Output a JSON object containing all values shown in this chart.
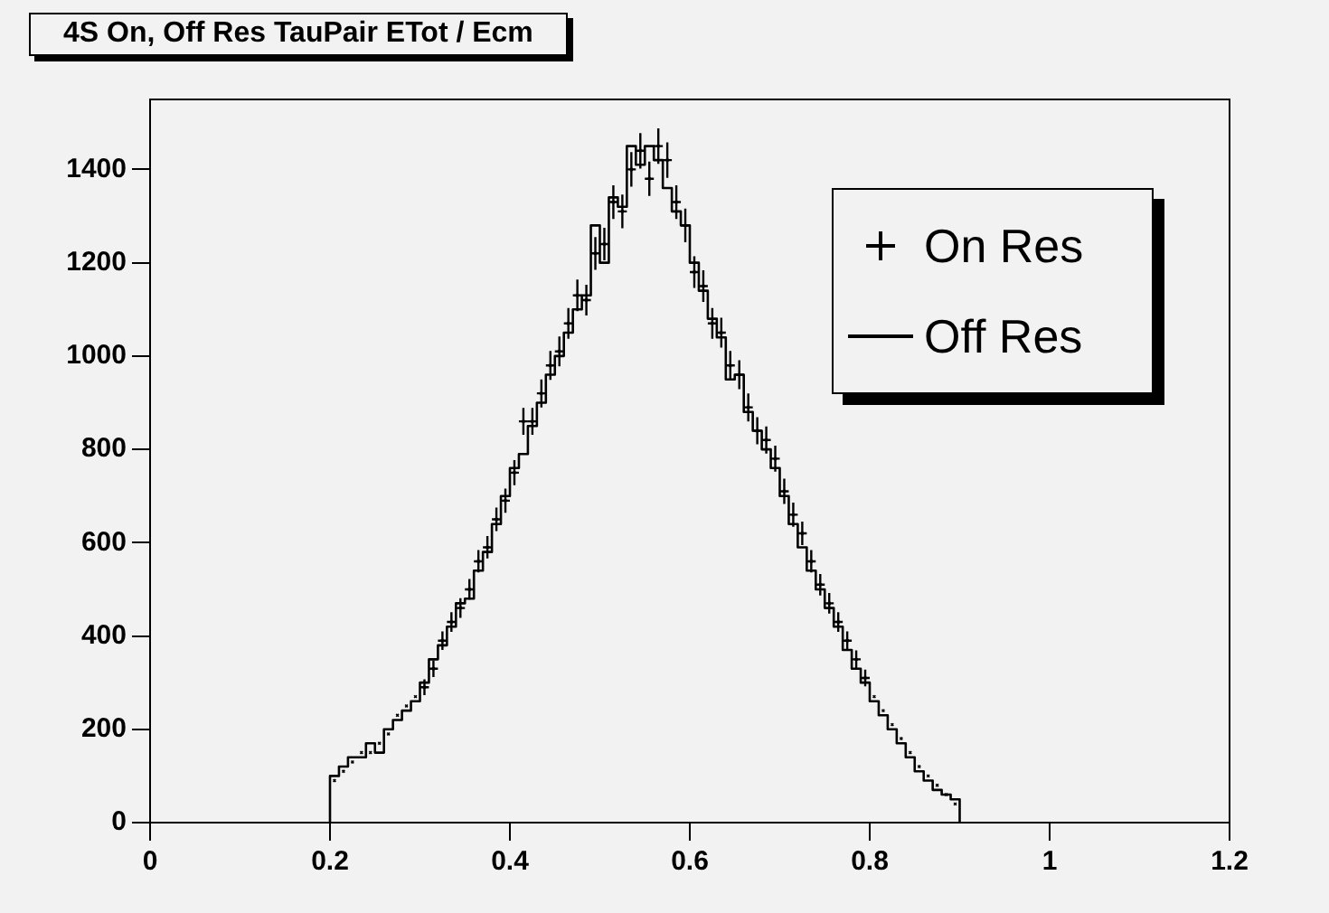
{
  "chart_data": {
    "type": "histogram",
    "title": "4S On, Off Res TauPair ETot / Ecm",
    "bins": [
      0.2,
      0.21,
      0.22,
      0.23,
      0.24,
      0.25,
      0.26,
      0.27,
      0.28,
      0.29,
      0.3,
      0.31,
      0.32,
      0.33,
      0.34,
      0.35,
      0.36,
      0.37,
      0.38,
      0.39,
      0.4,
      0.41,
      0.42,
      0.43,
      0.44,
      0.45,
      0.46,
      0.47,
      0.48,
      0.49,
      0.5,
      0.51,
      0.52,
      0.53,
      0.54,
      0.55,
      0.56,
      0.57,
      0.58,
      0.59,
      0.6,
      0.61,
      0.62,
      0.63,
      0.64,
      0.65,
      0.66,
      0.67,
      0.68,
      0.69,
      0.7,
      0.71,
      0.72,
      0.73,
      0.74,
      0.75,
      0.76,
      0.77,
      0.78,
      0.79,
      0.8,
      0.81,
      0.82,
      0.83,
      0.84,
      0.85,
      0.86,
      0.87,
      0.88,
      0.89,
      0.9
    ],
    "series": [
      {
        "name": "On Res",
        "type": "scatter",
        "color": "#000000",
        "x": [
          0.205,
          0.215,
          0.225,
          0.235,
          0.245,
          0.255,
          0.265,
          0.275,
          0.285,
          0.295,
          0.305,
          0.315,
          0.325,
          0.335,
          0.345,
          0.355,
          0.365,
          0.375,
          0.385,
          0.395,
          0.405,
          0.415,
          0.425,
          0.435,
          0.445,
          0.455,
          0.465,
          0.475,
          0.485,
          0.495,
          0.505,
          0.515,
          0.525,
          0.535,
          0.545,
          0.555,
          0.565,
          0.575,
          0.585,
          0.595,
          0.605,
          0.615,
          0.625,
          0.635,
          0.645,
          0.655,
          0.665,
          0.675,
          0.685,
          0.695,
          0.705,
          0.715,
          0.725,
          0.735,
          0.745,
          0.755,
          0.765,
          0.775,
          0.785,
          0.795,
          0.805,
          0.815,
          0.825,
          0.835,
          0.845,
          0.855,
          0.865,
          0.875,
          0.885,
          0.895
        ],
        "values": [
          90,
          110,
          130,
          150,
          150,
          170,
          190,
          230,
          250,
          270,
          290,
          330,
          390,
          430,
          460,
          500,
          560,
          590,
          650,
          690,
          750,
          860,
          860,
          920,
          980,
          1010,
          1070,
          1130,
          1120,
          1220,
          1240,
          1330,
          1310,
          1400,
          1440,
          1380,
          1450,
          1420,
          1330,
          1280,
          1180,
          1150,
          1070,
          1050,
          980,
          960,
          890,
          840,
          820,
          780,
          710,
          660,
          620,
          560,
          510,
          470,
          430,
          390,
          350,
          310,
          270,
          240,
          210,
          180,
          150,
          120,
          100,
          80,
          60,
          40
        ],
        "errors": [
          null,
          null,
          null,
          null,
          null,
          null,
          null,
          null,
          null,
          null,
          17,
          18,
          20,
          21,
          21,
          22,
          24,
          24,
          25,
          26,
          27,
          29,
          29,
          30,
          31,
          32,
          33,
          34,
          33,
          35,
          35,
          36,
          36,
          37,
          38,
          37,
          38,
          38,
          36,
          36,
          34,
          34,
          33,
          32,
          31,
          31,
          30,
          29,
          29,
          28,
          27,
          26,
          25,
          24,
          23,
          22,
          21,
          20,
          19,
          18,
          null,
          null,
          null,
          null,
          null,
          null,
          null,
          null,
          null,
          null
        ],
        "xerrors": [
          null,
          null,
          null,
          null,
          null,
          null,
          null,
          null,
          null,
          null,
          0.005,
          0.005,
          0.005,
          0.005,
          0.005,
          0.005,
          0.005,
          0.005,
          0.005,
          0.005,
          0.005,
          0.005,
          0.005,
          0.005,
          0.005,
          0.005,
          0.005,
          0.005,
          0.005,
          0.005,
          0.005,
          0.005,
          0.005,
          0.005,
          0.005,
          0.005,
          0.005,
          0.005,
          0.005,
          0.005,
          0.005,
          0.005,
          0.005,
          0.005,
          0.005,
          0.005,
          0.005,
          0.005,
          0.005,
          0.005,
          0.005,
          0.005,
          0.005,
          0.005,
          0.005,
          0.005,
          0.005,
          0.005,
          0.005,
          0.005,
          null,
          null,
          null,
          null,
          null,
          null,
          null,
          null,
          null,
          null
        ]
      },
      {
        "name": "Off Res",
        "type": "histogram",
        "color": "#000000",
        "values": [
          100,
          120,
          140,
          140,
          170,
          150,
          200,
          220,
          240,
          260,
          300,
          350,
          380,
          420,
          470,
          480,
          540,
          580,
          640,
          700,
          760,
          790,
          850,
          900,
          960,
          1000,
          1050,
          1100,
          1130,
          1280,
          1200,
          1340,
          1320,
          1450,
          1410,
          1450,
          1420,
          1360,
          1310,
          1280,
          1200,
          1140,
          1080,
          1040,
          950,
          960,
          880,
          840,
          800,
          760,
          700,
          640,
          590,
          540,
          500,
          460,
          420,
          370,
          330,
          300,
          260,
          230,
          200,
          170,
          140,
          110,
          90,
          70,
          60,
          50
        ]
      }
    ],
    "xlim": [
      0,
      1.2
    ],
    "xticks": [
      0,
      0.2,
      0.4,
      0.6,
      0.8,
      1,
      1.2
    ],
    "ylim": [
      0,
      1550
    ],
    "yticks": [
      0,
      200,
      400,
      600,
      800,
      1000,
      1200,
      1400
    ],
    "grid": false,
    "legend": "top right",
    "marker": "cross",
    "line_style": "solid"
  }
}
